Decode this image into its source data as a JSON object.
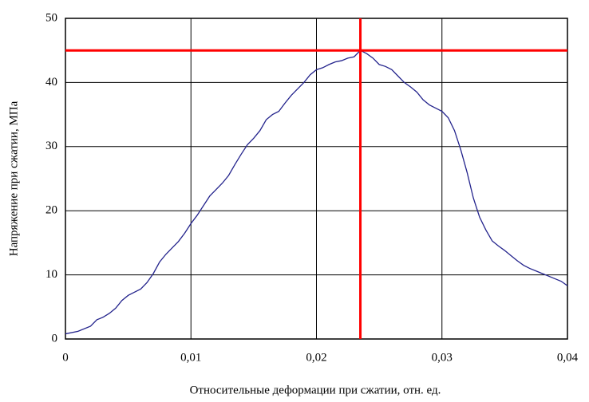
{
  "chart_data": {
    "type": "line",
    "x_label": "Относительные деформации при сжатии, отн. ед.",
    "y_label": "Напряжение при сжатии, МПа",
    "series": [
      {
        "color": "#23238c",
        "x": [
          0,
          0.001,
          0.002,
          0.0025,
          0.003,
          0.0035,
          0.004,
          0.0045,
          0.005,
          0.0055,
          0.006,
          0.0065,
          0.007,
          0.0075,
          0.008,
          0.0085,
          0.009,
          0.0095,
          0.01,
          0.0105,
          0.011,
          0.0115,
          0.012,
          0.0125,
          0.013,
          0.0135,
          0.014,
          0.0145,
          0.015,
          0.0155,
          0.016,
          0.0165,
          0.017,
          0.0175,
          0.018,
          0.0185,
          0.019,
          0.0195,
          0.02,
          0.0205,
          0.021,
          0.0215,
          0.022,
          0.0225,
          0.023,
          0.0235,
          0.024,
          0.0245,
          0.025,
          0.0255,
          0.026,
          0.0265,
          0.027,
          0.0275,
          0.028,
          0.0285,
          0.029,
          0.0295,
          0.03,
          0.0305,
          0.031,
          0.0315,
          0.032,
          0.0325,
          0.033,
          0.0335,
          0.034,
          0.0345,
          0.035,
          0.0355,
          0.036,
          0.0365,
          0.037,
          0.0375,
          0.038,
          0.0385,
          0.039,
          0.0395,
          0.04
        ],
        "values": [
          0.8,
          1.2,
          2,
          3,
          3.4,
          4,
          4.8,
          6,
          6.8,
          7.3,
          7.8,
          8.8,
          10.2,
          12,
          13.2,
          14.2,
          15.2,
          16.5,
          18,
          19.3,
          20.8,
          22.3,
          23.3,
          24.3,
          25.5,
          27.2,
          28.8,
          30.3,
          31.3,
          32.5,
          34.2,
          35,
          35.5,
          36.8,
          38,
          39,
          40,
          41.2,
          42,
          42.3,
          42.8,
          43.2,
          43.4,
          43.8,
          44,
          45,
          44.5,
          43.8,
          42.8,
          42.5,
          42,
          41,
          40,
          39.3,
          38.5,
          37.3,
          36.5,
          36,
          35.5,
          34.5,
          32.5,
          29.5,
          26,
          22,
          19,
          17,
          15.3,
          14.5,
          13.8,
          13,
          12.2,
          11.5,
          11,
          10.6,
          10.2,
          9.8,
          9.4,
          9,
          8.3
        ]
      }
    ],
    "xlim": [
      0,
      0.04
    ],
    "xticks": [
      0,
      {
        "value": 0.01,
        "label": "0,01"
      },
      {
        "value": 0.02,
        "label": "0,02"
      },
      {
        "value": 0.03,
        "label": "0,03"
      },
      {
        "value": 0.04,
        "label": "0,04"
      }
    ],
    "ylim": [
      0,
      50
    ],
    "yticks": [
      0,
      10,
      20,
      30,
      40,
      50
    ],
    "grid": true,
    "reference_x": 0.0235,
    "reference_y": 45,
    "reference_color": "#ff0000"
  }
}
